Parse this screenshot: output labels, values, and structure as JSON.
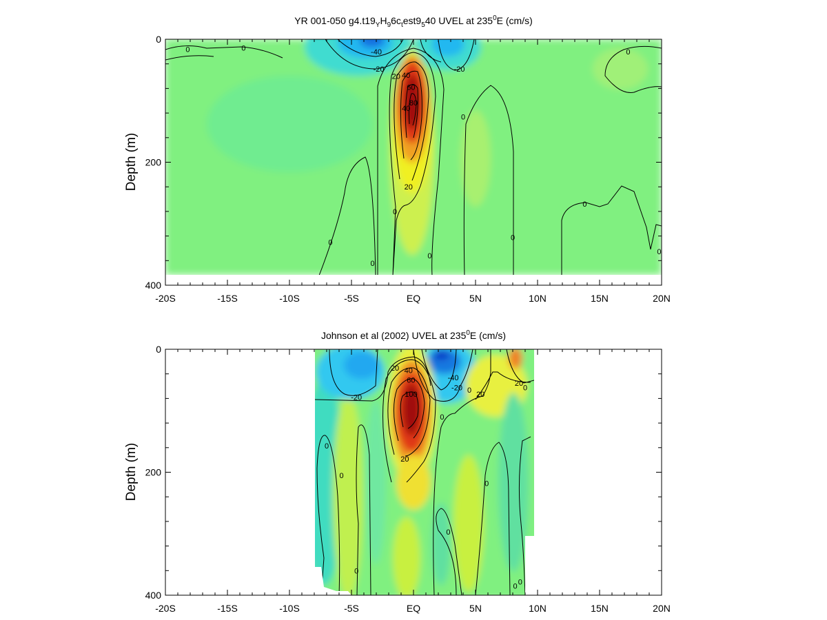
{
  "colors": {
    "background_field": "#80f080",
    "westward_strong": "#1560e0",
    "westward": "#20c8f0",
    "eastward_weak": "#e8f040",
    "eastward": "#f09020",
    "eastward_strong": "#c01010",
    "contour_line": "#000000"
  },
  "chart_data": [
    {
      "type": "heatmap",
      "title": {
        "pre": "YR 001-050 g4.t19",
        "s1": "Y",
        "m1": "H",
        "s2": "9",
        "m2": "6c",
        "s3": "t",
        "m3": "est9",
        "s4": "5",
        "m4": "40 UVEL at 235",
        "sup": "0",
        "post": "E (cm/s)"
      },
      "ylabel": "Depth (m)",
      "xlabel": "",
      "xlim": [
        -20,
        20
      ],
      "ylim": [
        400,
        0
      ],
      "x_ticks": [
        {
          "value": -20,
          "label": "-20S"
        },
        {
          "value": -15,
          "label": "-15S"
        },
        {
          "value": -10,
          "label": "-10S"
        },
        {
          "value": -5,
          "label": "-5S"
        },
        {
          "value": 0,
          "label": "EQ"
        },
        {
          "value": 5,
          "label": "5N"
        },
        {
          "value": 10,
          "label": "10N"
        },
        {
          "value": 15,
          "label": "15N"
        },
        {
          "value": 20,
          "label": "20N"
        }
      ],
      "y_ticks": [
        {
          "value": 0,
          "label": "0"
        },
        {
          "value": 200,
          "label": "200"
        },
        {
          "value": 400,
          "label": "400"
        }
      ],
      "data_coverage": {
        "lat_range": [
          -20,
          20
        ],
        "depth_max": 385
      },
      "features": [
        {
          "name": "Equatorial Undercurrent",
          "lat": 0,
          "depth": 100,
          "max_speed": 100
        },
        {
          "name": "South Equatorial Current (south branch)",
          "lat": -3.5,
          "depth": 5,
          "max_speed": -50
        },
        {
          "name": "South Equatorial Current (north branch)",
          "lat": 2.5,
          "depth": 20,
          "max_speed": -35
        }
      ],
      "contour_labels": [
        {
          "text": "0",
          "lat": -18.2,
          "depth": 16
        },
        {
          "text": "0",
          "lat": -13.7,
          "depth": 14
        },
        {
          "text": "-40",
          "lat": -3,
          "depth": 20
        },
        {
          "text": "-20",
          "lat": -2.8,
          "depth": 48
        },
        {
          "text": "20",
          "lat": -1.4,
          "depth": 60
        },
        {
          "text": "40",
          "lat": -0.6,
          "depth": 58
        },
        {
          "text": "60",
          "lat": -0.2,
          "depth": 78
        },
        {
          "text": "80",
          "lat": 0,
          "depth": 103
        },
        {
          "text": "40",
          "lat": -0.6,
          "depth": 112
        },
        {
          "text": "-20",
          "lat": 3.7,
          "depth": 48
        },
        {
          "text": "20",
          "lat": -0.4,
          "depth": 240
        },
        {
          "text": "0",
          "lat": 4,
          "depth": 126
        },
        {
          "text": "0",
          "lat": -1.5,
          "depth": 280
        },
        {
          "text": "0",
          "lat": -6.7,
          "depth": 330
        },
        {
          "text": "0",
          "lat": -3.3,
          "depth": 364
        },
        {
          "text": "0",
          "lat": 1.3,
          "depth": 352
        },
        {
          "text": "0",
          "lat": 8,
          "depth": 322
        },
        {
          "text": "0",
          "lat": 13.8,
          "depth": 268
        },
        {
          "text": "0",
          "lat": 17.3,
          "depth": 20
        },
        {
          "text": "0",
          "lat": 19.8,
          "depth": 345
        }
      ]
    },
    {
      "type": "heatmap",
      "title": {
        "pre": "Johnson et al (2002) UVEL at 235",
        "sup": "0",
        "post": "E (cm/s)"
      },
      "ylabel": "Depth (m)",
      "xlabel": "",
      "xlim": [
        -20,
        20
      ],
      "ylim": [
        400,
        0
      ],
      "x_ticks": [
        {
          "value": -20,
          "label": "-20S"
        },
        {
          "value": -15,
          "label": "-15S"
        },
        {
          "value": -10,
          "label": "-10S"
        },
        {
          "value": -5,
          "label": "-5S"
        },
        {
          "value": 0,
          "label": "EQ"
        },
        {
          "value": 5,
          "label": "5N"
        },
        {
          "value": 10,
          "label": "10N"
        },
        {
          "value": 15,
          "label": "15N"
        },
        {
          "value": 20,
          "label": "20N"
        }
      ],
      "y_ticks": [
        {
          "value": 0,
          "label": "0"
        },
        {
          "value": 200,
          "label": "200"
        },
        {
          "value": 400,
          "label": "400"
        }
      ],
      "data_coverage": {
        "lat_range": [
          -8,
          9.8
        ],
        "depth_max": 400
      },
      "features": [
        {
          "name": "Equatorial Undercurrent",
          "lat": -0.2,
          "depth": 100,
          "max_speed": 110
        },
        {
          "name": "South Equatorial Current (north branch)",
          "lat": 2.5,
          "depth": 10,
          "max_speed": -55
        },
        {
          "name": "South Equatorial Current (south branch)",
          "lat": -5,
          "depth": 30,
          "max_speed": -30
        },
        {
          "name": "North Equatorial Countercurrent",
          "lat": 8.3,
          "depth": 15,
          "max_speed": 45
        }
      ],
      "contour_labels": [
        {
          "text": "-20",
          "lat": -4.6,
          "depth": 78
        },
        {
          "text": "20",
          "lat": -1.5,
          "depth": 30
        },
        {
          "text": "40",
          "lat": -0.4,
          "depth": 34
        },
        {
          "text": "60",
          "lat": -0.2,
          "depth": 50
        },
        {
          "text": "100",
          "lat": -0.2,
          "depth": 73
        },
        {
          "text": "-40",
          "lat": 3.2,
          "depth": 46
        },
        {
          "text": "-20",
          "lat": 3.5,
          "depth": 62
        },
        {
          "text": "20",
          "lat": 5.4,
          "depth": 73
        },
        {
          "text": "20",
          "lat": 8.5,
          "depth": 55
        },
        {
          "text": "0",
          "lat": 4.5,
          "depth": 66
        },
        {
          "text": "0",
          "lat": 9,
          "depth": 62
        },
        {
          "text": "0",
          "lat": 2.3,
          "depth": 110
        },
        {
          "text": "20",
          "lat": -0.7,
          "depth": 178
        },
        {
          "text": "0",
          "lat": -7,
          "depth": 157
        },
        {
          "text": "0",
          "lat": -5.8,
          "depth": 205
        },
        {
          "text": "0",
          "lat": 5.9,
          "depth": 218
        },
        {
          "text": "0",
          "lat": 2.8,
          "depth": 297
        },
        {
          "text": "0",
          "lat": -4.6,
          "depth": 360
        },
        {
          "text": "0",
          "lat": 8.2,
          "depth": 385
        },
        {
          "text": "0",
          "lat": 8.6,
          "depth": 378
        }
      ]
    }
  ]
}
